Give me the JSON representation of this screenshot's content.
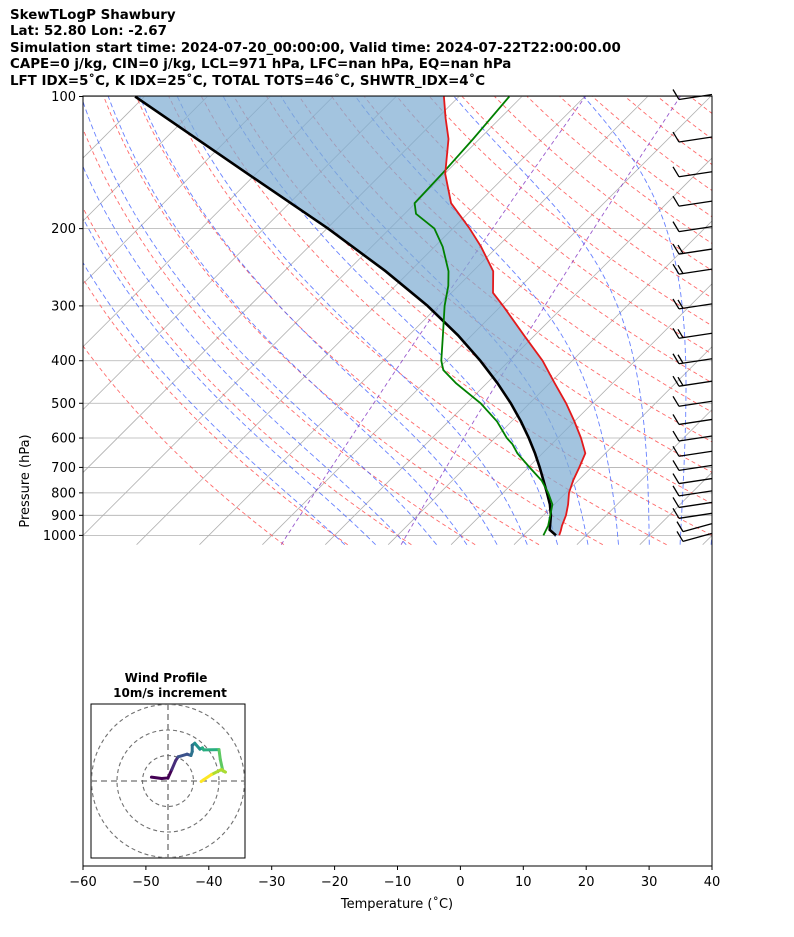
{
  "header": {
    "line1": "SkewTLogP Shawbury",
    "line2": "Lat: 52.80   Lon: -2.67",
    "line3": "Simulation start time: 2024-07-20_00:00:00, Valid time: 2024-07-22T22:00:00.00",
    "line4": "CAPE=0 j/kg, CIN=0 j/kg, LCL=971 hPa, LFC=nan hPa, EQ=nan hPa",
    "line5": "LFT IDX=5˚C, K IDX=25˚C, TOTAL TOTS=46˚C, SHWTR_IDX=4˚C"
  },
  "chart_data": {
    "type": "line",
    "title": "SkewTLogP Shawbury",
    "xlabel": "Temperature (˚C)",
    "ylabel": "Pressure (hPa)",
    "xlim": [
      -60,
      40
    ],
    "ylim": [
      1050,
      100
    ],
    "yscale": "log",
    "skew": true,
    "grid": true,
    "x_ticks": [
      "−60",
      "−50",
      "−40",
      "−30",
      "−20",
      "−10",
      "0",
      "10",
      "20",
      "30",
      "40"
    ],
    "x_tick_values": [
      -60,
      -50,
      -40,
      -30,
      -20,
      -10,
      0,
      10,
      20,
      30,
      40
    ],
    "y_ticks": [
      "1000",
      "900",
      "800",
      "700",
      "600",
      "500",
      "400",
      "300",
      "200",
      "100"
    ],
    "y_tick_values": [
      1000,
      900,
      800,
      700,
      600,
      500,
      400,
      300,
      200,
      100
    ],
    "series": [
      {
        "color": "#e31a1c",
        "points": [
          [
            1000,
            15.7
          ],
          [
            975,
            15.2
          ],
          [
            950,
            14.6
          ],
          [
            900,
            13.6
          ],
          [
            850,
            12.2
          ],
          [
            800,
            10.5
          ],
          [
            750,
            9.2
          ],
          [
            700,
            8.1
          ],
          [
            650,
            6.8
          ],
          [
            600,
            3.7
          ],
          [
            550,
            0.0
          ],
          [
            500,
            -4.2
          ],
          [
            450,
            -9.2
          ],
          [
            400,
            -14.7
          ],
          [
            350,
            -21.7
          ],
          [
            300,
            -29.7
          ],
          [
            280,
            -33.4
          ],
          [
            250,
            -36.8
          ],
          [
            220,
            -42.6
          ],
          [
            200,
            -47.3
          ],
          [
            175,
            -54.3
          ],
          [
            150,
            -59.9
          ],
          [
            125,
            -64.9
          ],
          [
            112,
            -68.7
          ],
          [
            100,
            -72.4
          ]
        ]
      },
      {
        "color": "#008000",
        "points": [
          [
            1000,
            13.2
          ],
          [
            950,
            12.4
          ],
          [
            900,
            11.1
          ],
          [
            850,
            9.7
          ],
          [
            800,
            7.2
          ],
          [
            750,
            4.2
          ],
          [
            700,
            0.2
          ],
          [
            650,
            -4.0
          ],
          [
            620,
            -6.2
          ],
          [
            600,
            -8.1
          ],
          [
            550,
            -12.3
          ],
          [
            500,
            -17.8
          ],
          [
            450,
            -24.9
          ],
          [
            420,
            -29.0
          ],
          [
            400,
            -30.8
          ],
          [
            350,
            -34.6
          ],
          [
            300,
            -39.0
          ],
          [
            270,
            -41.6
          ],
          [
            250,
            -43.9
          ],
          [
            220,
            -48.7
          ],
          [
            200,
            -52.9
          ],
          [
            185,
            -58.2
          ],
          [
            175,
            -60.1
          ],
          [
            150,
            -60.4
          ],
          [
            125,
            -61.0
          ],
          [
            100,
            -62.0
          ]
        ]
      },
      {
        "color": "#000000",
        "points": [
          [
            1000,
            15.2
          ],
          [
            971,
            13.3
          ],
          [
            900,
            11.2
          ],
          [
            850,
            9.3
          ],
          [
            800,
            7.0
          ],
          [
            750,
            4.5
          ],
          [
            700,
            1.8
          ],
          [
            650,
            -1.2
          ],
          [
            600,
            -4.6
          ],
          [
            550,
            -8.5
          ],
          [
            500,
            -13.0
          ],
          [
            450,
            -18.3
          ],
          [
            400,
            -24.6
          ],
          [
            350,
            -32.2
          ],
          [
            300,
            -41.7
          ],
          [
            250,
            -53.9
          ],
          [
            200,
            -69.8
          ],
          [
            150,
            -91.3
          ],
          [
            100,
            -121.5
          ]
        ]
      }
    ],
    "barbs_pressure_levels": [
      100,
      125,
      150,
      175,
      200,
      225,
      250,
      300,
      350,
      400,
      450,
      500,
      550,
      600,
      650,
      700,
      750,
      800,
      850,
      900,
      950,
      1000
    ]
  },
  "inset": {
    "title_line1": "Wind Profile",
    "title_line2": "10m/s increment",
    "type": "hodograph",
    "rings_mps": [
      10,
      20,
      30
    ],
    "hodograph_points": [
      [
        -6.5,
        1.5
      ],
      [
        -2.5,
        1.0
      ],
      [
        0.0,
        1.2
      ],
      [
        1.5,
        4.5
      ],
      [
        3.0,
        8.0
      ],
      [
        4.0,
        9.5
      ],
      [
        7.5,
        10.5
      ],
      [
        9.0,
        10.0
      ],
      [
        9.5,
        11.5
      ],
      [
        9.5,
        14.0
      ],
      [
        10.5,
        14.8
      ],
      [
        12.5,
        12.5
      ],
      [
        13.5,
        13.0
      ],
      [
        14.0,
        12.2
      ],
      [
        20.0,
        12.3
      ],
      [
        20.5,
        8.5
      ],
      [
        21.5,
        4.0
      ],
      [
        22.5,
        3.5
      ],
      [
        21.0,
        4.5
      ],
      [
        17.0,
        2.5
      ],
      [
        14.0,
        0.5
      ],
      [
        13.0,
        -0.2
      ]
    ]
  }
}
